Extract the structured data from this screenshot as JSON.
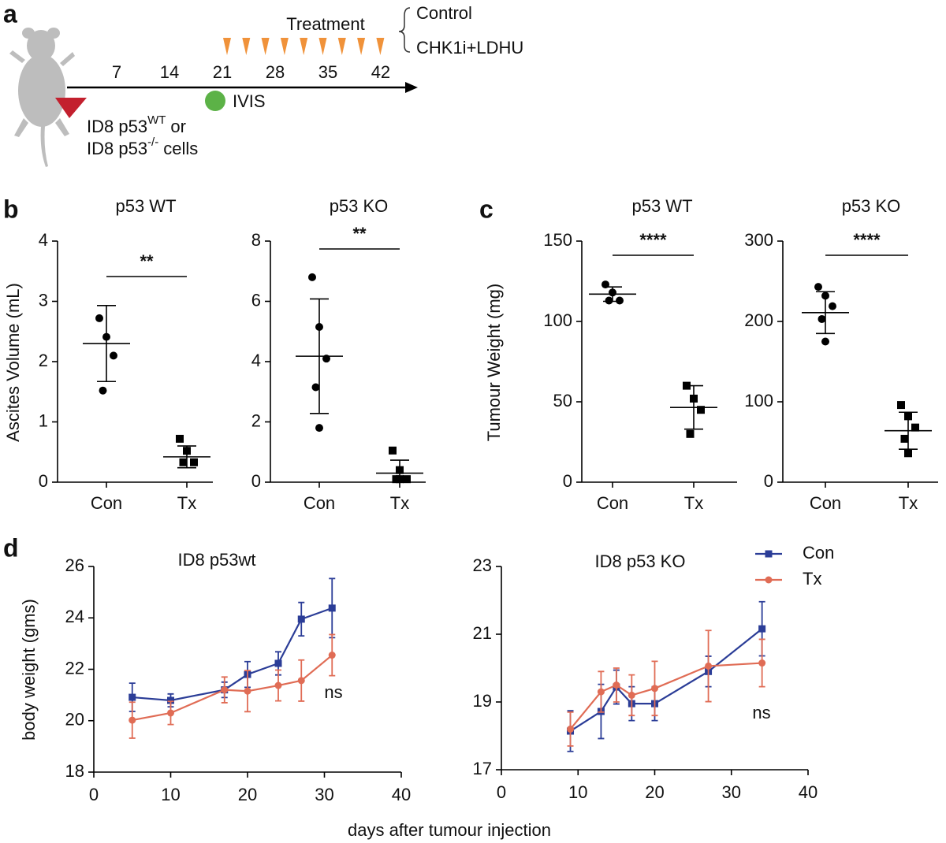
{
  "panel_labels": [
    "a",
    "b",
    "c",
    "d"
  ],
  "schematic": {
    "days": [
      7,
      14,
      21,
      28,
      35,
      42
    ],
    "treatment": "Treatment",
    "arms": [
      "Control",
      "CHK1i+LDHU"
    ],
    "imaging": "IVIS",
    "cells": [
      {
        "text": "ID8 p53",
        "superscript": "WT",
        "suffix": "or"
      },
      {
        "text": "ID8 p53",
        "superscript": "-/-",
        "suffix": "cells"
      }
    ]
  },
  "chart_data": [
    {
      "type": "dotplot",
      "title": "p53 WT",
      "ylabel": "Ascites Volume (mL)",
      "categories": [
        "Con",
        "Tx"
      ],
      "markers": [
        "circle",
        "square"
      ],
      "points": [
        [
          2.72,
          2.41,
          2.1,
          1.52
        ],
        [
          0.72,
          0.52,
          0.33,
          0.33
        ]
      ],
      "means": [
        2.3,
        0.42
      ],
      "sd": [
        0.63,
        0.18
      ],
      "significance": "**",
      "ylim": [
        0,
        4
      ],
      "yticks": [
        0,
        1,
        2,
        3,
        4
      ],
      "color": "#000000"
    },
    {
      "type": "dotplot",
      "title": "p53 KO",
      "categories": [
        "Con",
        "Tx"
      ],
      "markers": [
        "circle",
        "square"
      ],
      "points": [
        [
          6.8,
          5.15,
          4.1,
          3.15,
          1.8
        ],
        [
          1.05,
          0.4,
          0.1,
          0.1,
          0.1
        ]
      ],
      "means": [
        4.18,
        0.3
      ],
      "sd": [
        1.9,
        0.43
      ],
      "significance": "**",
      "ylim": [
        0,
        8
      ],
      "yticks": [
        0,
        2,
        4,
        6,
        8
      ],
      "color": "#000000"
    },
    {
      "type": "dotplot",
      "title": "p53 WT",
      "ylabel": "Tumour Weight (mg)",
      "categories": [
        "Con",
        "Tx"
      ],
      "markers": [
        "circle",
        "square"
      ],
      "points": [
        [
          123,
          118,
          113,
          113
        ],
        [
          60,
          52,
          45,
          30
        ]
      ],
      "means": [
        117,
        46.5
      ],
      "sd": [
        4.5,
        13.5
      ],
      "significance": "****",
      "ylim": [
        0,
        150
      ],
      "yticks": [
        0,
        50,
        100,
        150
      ],
      "color": "#000000"
    },
    {
      "type": "dotplot",
      "title": "p53 KO",
      "categories": [
        "Con",
        "Tx"
      ],
      "markers": [
        "circle",
        "square"
      ],
      "points": [
        [
          243,
          232,
          219,
          203,
          175
        ],
        [
          96,
          82,
          68,
          54,
          36
        ]
      ],
      "means": [
        211,
        64
      ],
      "sd": [
        26,
        23
      ],
      "significance": "****",
      "ylim": [
        0,
        300
      ],
      "yticks": [
        0,
        100,
        200,
        300
      ],
      "color": "#000000"
    },
    {
      "type": "line",
      "title": "ID8 p53wt",
      "ylabel": "body weight (gms)",
      "annotation": "ns",
      "x": [
        5,
        10,
        17,
        20,
        24,
        27,
        31
      ],
      "series": [
        {
          "color": "#2b3d97",
          "marker": "square",
          "values": [
            20.91,
            20.79,
            21.2,
            21.8,
            22.23,
            23.95,
            24.38
          ],
          "errors": [
            0.55,
            0.25,
            0.3,
            0.5,
            0.45,
            0.65,
            1.15
          ]
        },
        {
          "color": "#e06c55",
          "marker": "circle",
          "values": [
            20.02,
            20.3,
            21.2,
            21.15,
            21.37,
            21.56,
            22.55
          ],
          "errors": [
            0.7,
            0.45,
            0.5,
            0.8,
            0.6,
            0.8,
            0.8
          ]
        }
      ],
      "xlim": [
        0,
        40
      ],
      "xticks": [
        0,
        10,
        20,
        30,
        40
      ],
      "ylim": [
        18,
        26
      ],
      "yticks": [
        18,
        20,
        22,
        24,
        26
      ]
    },
    {
      "type": "line",
      "title": "ID8 p53 KO",
      "annotation": "ns",
      "legend": "upper right",
      "x": [
        9,
        13,
        15,
        17,
        20,
        27,
        34
      ],
      "series": [
        {
          "name": "Con",
          "color": "#2b3d97",
          "marker": "square",
          "values": [
            18.14,
            18.72,
            19.44,
            18.95,
            18.95,
            19.9,
            21.16
          ],
          "errors": [
            0.6,
            0.8,
            0.5,
            0.5,
            0.5,
            0.45,
            0.8
          ]
        },
        {
          "name": "Tx",
          "color": "#e06c55",
          "marker": "circle",
          "values": [
            18.2,
            19.3,
            19.5,
            19.2,
            19.4,
            20.06,
            20.15
          ],
          "errors": [
            0.5,
            0.6,
            0.5,
            0.6,
            0.8,
            1.05,
            0.7
          ]
        }
      ],
      "xlim": [
        0,
        40
      ],
      "xticks": [
        0,
        10,
        20,
        30,
        40
      ],
      "ylim": [
        17,
        23
      ],
      "yticks": [
        17,
        19,
        21,
        23
      ]
    }
  ],
  "shared_xlabel": "days after tumour injection"
}
